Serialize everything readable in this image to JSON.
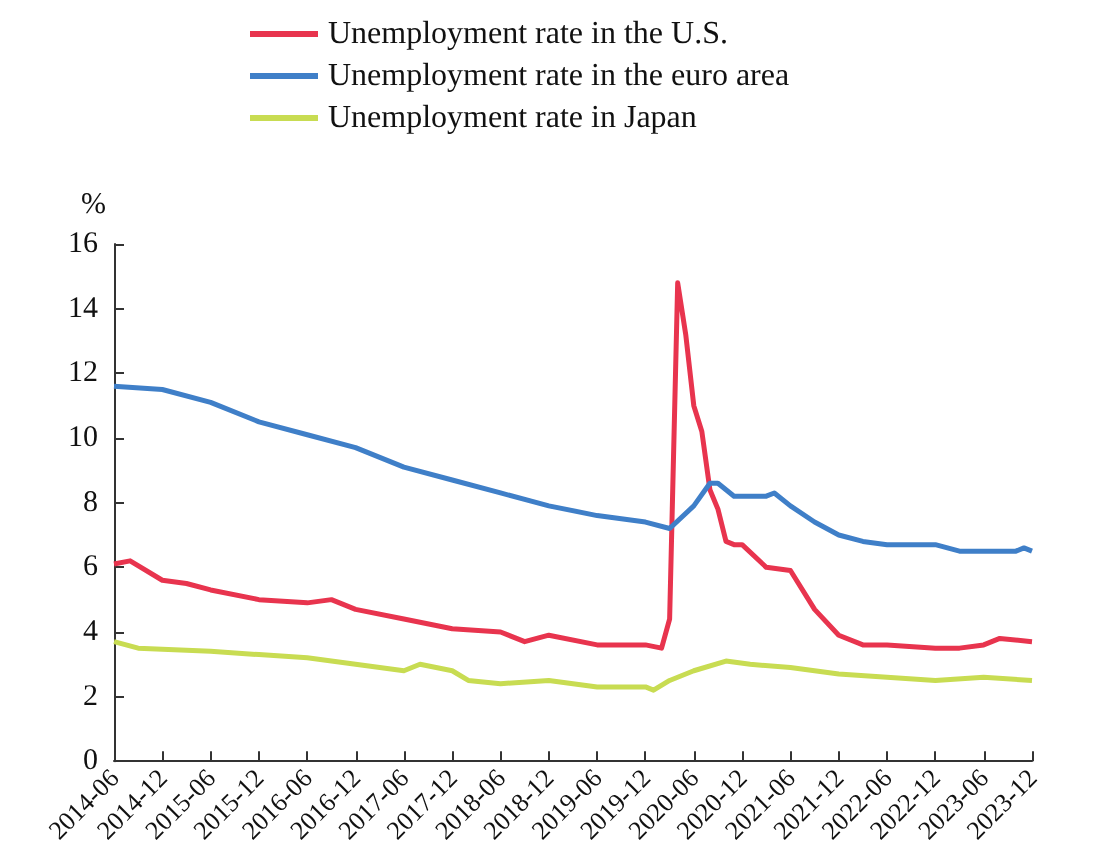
{
  "chart_data": {
    "type": "line",
    "ylabel": "%",
    "legend": "top",
    "marker": "none",
    "line_style": "solid",
    "grid": false,
    "xlim": [
      "2014-06",
      "2023-12"
    ],
    "xticks": [
      "2014-06",
      "2014-12",
      "2015-06",
      "2015-12",
      "2016-06",
      "2016-12",
      "2017-06",
      "2017-12",
      "2018-06",
      "2018-12",
      "2019-06",
      "2019-12",
      "2020-06",
      "2020-12",
      "2021-06",
      "2021-12",
      "2022-06",
      "2022-12",
      "2023-06",
      "2023-12"
    ],
    "ylim": [
      0,
      16
    ],
    "yticks": [
      0,
      2,
      4,
      6,
      8,
      10,
      12,
      14,
      16
    ],
    "series": [
      {
        "name": "Unemployment rate in the U.S.",
        "color": "#e8344e",
        "x": [
          "2014-06",
          "2014-08",
          "2014-12",
          "2015-03",
          "2015-06",
          "2015-12",
          "2016-06",
          "2016-09",
          "2016-12",
          "2017-06",
          "2017-12",
          "2018-06",
          "2018-09",
          "2018-12",
          "2019-06",
          "2019-12",
          "2020-02",
          "2020-03",
          "2020-04",
          "2020-05",
          "2020-06",
          "2020-07",
          "2020-08",
          "2020-09",
          "2020-10",
          "2020-11",
          "2020-12",
          "2021-03",
          "2021-06",
          "2021-09",
          "2021-12",
          "2022-03",
          "2022-06",
          "2022-12",
          "2023-03",
          "2023-06",
          "2023-08",
          "2023-12"
        ],
        "values": [
          6.1,
          6.2,
          5.6,
          5.5,
          5.3,
          5.0,
          4.9,
          5.0,
          4.7,
          4.4,
          4.1,
          4.0,
          3.7,
          3.9,
          3.6,
          3.6,
          3.5,
          4.4,
          14.8,
          13.2,
          11.0,
          10.2,
          8.4,
          7.8,
          6.8,
          6.7,
          6.7,
          6.0,
          5.9,
          4.7,
          3.9,
          3.6,
          3.6,
          3.5,
          3.5,
          3.6,
          3.8,
          3.7
        ]
      },
      {
        "name": "Unemployment rate in the euro area",
        "color": "#3f7fc8",
        "x": [
          "2014-06",
          "2014-12",
          "2015-06",
          "2015-12",
          "2016-06",
          "2016-12",
          "2017-06",
          "2017-12",
          "2018-06",
          "2018-12",
          "2019-06",
          "2019-12",
          "2020-03",
          "2020-06",
          "2020-08",
          "2020-09",
          "2020-11",
          "2021-03",
          "2021-04",
          "2021-06",
          "2021-09",
          "2021-12",
          "2022-03",
          "2022-06",
          "2022-12",
          "2023-03",
          "2023-10",
          "2023-11",
          "2023-12"
        ],
        "values": [
          11.6,
          11.5,
          11.1,
          10.5,
          10.1,
          9.7,
          9.1,
          8.7,
          8.3,
          7.9,
          7.6,
          7.4,
          7.2,
          7.9,
          8.6,
          8.6,
          8.2,
          8.2,
          8.3,
          7.9,
          7.4,
          7.0,
          6.8,
          6.7,
          6.7,
          6.5,
          6.5,
          6.6,
          6.5
        ]
      },
      {
        "name": "Unemployment rate in Japan",
        "color": "#c8dc52",
        "x": [
          "2014-06",
          "2014-09",
          "2015-06",
          "2015-12",
          "2016-06",
          "2016-12",
          "2017-06",
          "2017-08",
          "2017-12",
          "2018-02",
          "2018-06",
          "2018-12",
          "2019-06",
          "2019-12",
          "2020-01",
          "2020-03",
          "2020-06",
          "2020-10",
          "2021-01",
          "2021-06",
          "2021-12",
          "2022-06",
          "2022-12",
          "2023-06",
          "2023-12"
        ],
        "values": [
          3.7,
          3.5,
          3.4,
          3.3,
          3.2,
          3.0,
          2.8,
          3.0,
          2.8,
          2.5,
          2.4,
          2.5,
          2.3,
          2.3,
          2.2,
          2.5,
          2.8,
          3.1,
          3.0,
          2.9,
          2.7,
          2.6,
          2.5,
          2.6,
          2.5
        ]
      }
    ]
  }
}
